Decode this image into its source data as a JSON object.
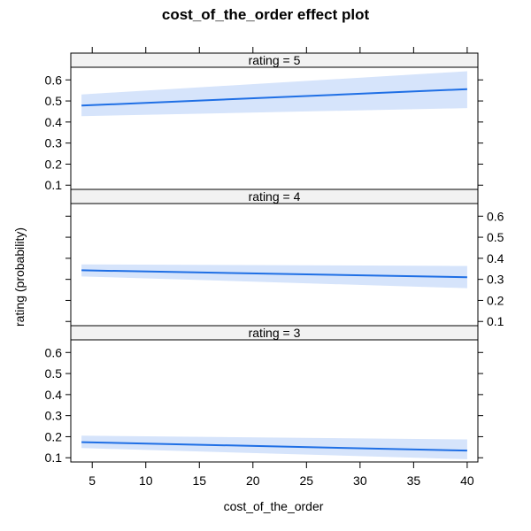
{
  "chart_data": {
    "type": "line",
    "title": "cost_of_the_order effect plot",
    "xlabel": "cost_of_the_order",
    "ylabel": "rating (probability)",
    "xlim": [
      3,
      41
    ],
    "ylim": [
      0.08,
      0.66
    ],
    "x_ticks": [
      5,
      10,
      15,
      20,
      25,
      30,
      35,
      40
    ],
    "y_ticks": [
      0.1,
      0.2,
      0.3,
      0.4,
      0.5,
      0.6
    ],
    "line_color": "#1f6fe5",
    "band_color": "#d6e4fb",
    "strip_color": "#f2f2f2",
    "grid": false,
    "panels": [
      {
        "strip": "rating = 5",
        "y_axis_side": "left",
        "x": [
          4.0,
          40.0
        ],
        "values": [
          0.478,
          0.556
        ],
        "lower": [
          0.428,
          0.466
        ],
        "upper": [
          0.531,
          0.641
        ]
      },
      {
        "strip": "rating = 4",
        "y_axis_side": "right",
        "x": [
          4.0,
          40.0
        ],
        "values": [
          0.343,
          0.31
        ],
        "lower": [
          0.314,
          0.258
        ],
        "upper": [
          0.371,
          0.364
        ]
      },
      {
        "strip": "rating = 3",
        "y_axis_side": "left",
        "x": [
          4.0,
          40.0
        ],
        "values": [
          0.174,
          0.134
        ],
        "lower": [
          0.146,
          0.093
        ],
        "upper": [
          0.205,
          0.187
        ]
      }
    ]
  }
}
